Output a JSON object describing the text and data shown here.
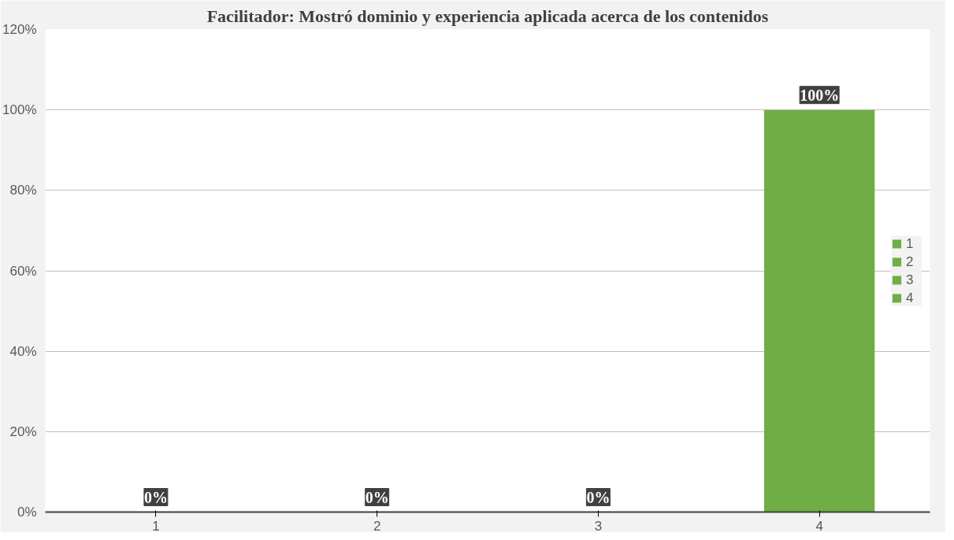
{
  "chart_data": {
    "type": "bar",
    "title": "Facilitador: Mostró dominio y experiencia aplicada acerca de los contenidos",
    "categories": [
      "1",
      "2",
      "3",
      "4"
    ],
    "stacked": true,
    "series": [
      {
        "name": "1",
        "color": "#70ad47",
        "values": [
          0,
          null,
          null,
          null
        ],
        "value_labels": [
          "0%",
          null,
          null,
          null
        ]
      },
      {
        "name": "2",
        "color": "#70ad47",
        "values": [
          null,
          0,
          null,
          null
        ],
        "value_labels": [
          null,
          "0%",
          null,
          null
        ]
      },
      {
        "name": "3",
        "color": "#70ad47",
        "values": [
          null,
          null,
          0,
          null
        ],
        "value_labels": [
          null,
          null,
          "0%",
          null
        ]
      },
      {
        "name": "4",
        "color": "#70ad47",
        "values": [
          null,
          null,
          null,
          100
        ],
        "value_labels": [
          null,
          null,
          null,
          "100%"
        ]
      }
    ],
    "ylim": [
      0,
      120
    ],
    "yticks": [
      {
        "value": 0,
        "label": "0%"
      },
      {
        "value": 20,
        "label": "20%"
      },
      {
        "value": 40,
        "label": "40%"
      },
      {
        "value": 60,
        "label": "60%"
      },
      {
        "value": 80,
        "label": "80%"
      },
      {
        "value": 100,
        "label": "100%"
      },
      {
        "value": 120,
        "label": "120%"
      }
    ],
    "grid": "y",
    "legend": "right"
  }
}
